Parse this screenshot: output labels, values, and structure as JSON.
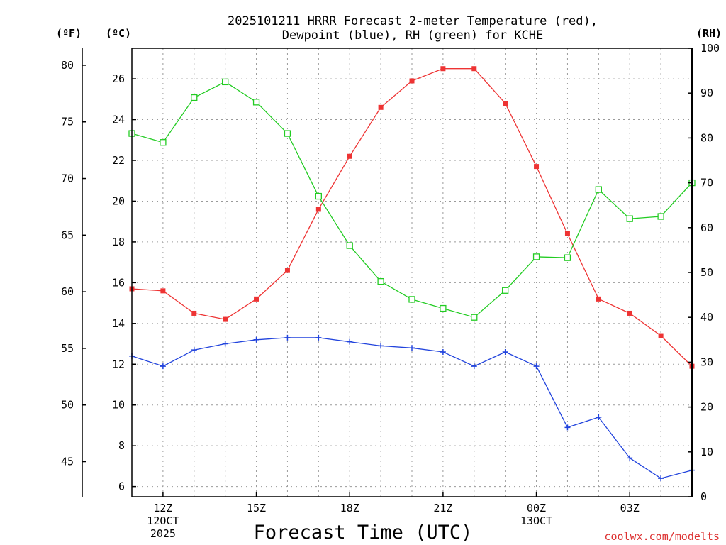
{
  "chart_data": {
    "type": "line",
    "title": "2025101211 HRRR Forecast 2-meter Temperature (red),",
    "subtitle": "Dewpoint (blue), RH (green) for KCHE",
    "xlabel": "Forecast Time (UTC)",
    "left_unit_f": "(ºF)",
    "left_unit_c": "(ºC)",
    "right_unit": "(RH)",
    "credit": "coolwx.com/modelts",
    "ylim_c": [
      5.5,
      27.5
    ],
    "ylim_f": [
      41.9,
      81.5
    ],
    "ylim_rh": [
      0,
      100
    ],
    "yticks_c": [
      6,
      8,
      10,
      12,
      14,
      16,
      18,
      20,
      22,
      24,
      26
    ],
    "yticks_f": [
      45,
      50,
      55,
      60,
      65,
      70,
      75,
      80
    ],
    "yticks_rh": [
      0,
      10,
      20,
      30,
      40,
      50,
      60,
      70,
      80,
      90,
      100
    ],
    "x_hours": [
      11,
      12,
      13,
      14,
      15,
      16,
      17,
      18,
      19,
      20,
      21,
      22,
      23,
      24,
      25,
      26,
      27,
      28,
      29
    ],
    "xlim_hours": [
      11,
      29
    ],
    "x_ticks": [
      {
        "hour": 12,
        "line1": "12Z",
        "line2": "12OCT",
        "line3": "2025"
      },
      {
        "hour": 15,
        "line1": "15Z"
      },
      {
        "hour": 18,
        "line1": "18Z"
      },
      {
        "hour": 21,
        "line1": "21Z"
      },
      {
        "hour": 24,
        "line1": "00Z",
        "line2": "13OCT"
      },
      {
        "hour": 27,
        "line1": "03Z"
      }
    ],
    "series": [
      {
        "name": "Temperature",
        "axis": "c",
        "color": "#ee3333",
        "marker": "filled-square",
        "values": [
          15.7,
          15.6,
          14.5,
          14.2,
          15.2,
          16.6,
          19.6,
          22.2,
          24.6,
          25.9,
          26.5,
          26.5,
          24.8,
          21.7,
          18.4,
          15.2,
          14.5,
          13.4,
          11.9
        ]
      },
      {
        "name": "Dewpoint",
        "axis": "c",
        "color": "#2244dd",
        "marker": "plus",
        "values": [
          12.4,
          11.9,
          12.7,
          13.0,
          13.2,
          13.3,
          13.3,
          13.1,
          12.9,
          12.8,
          12.6,
          11.9,
          12.6,
          11.9,
          8.9,
          9.4,
          7.4,
          6.4,
          6.8
        ]
      },
      {
        "name": "RH",
        "axis": "rh",
        "color": "#22cc22",
        "marker": "open-square",
        "values": [
          81,
          79,
          89,
          92.5,
          88,
          81,
          67,
          56,
          48,
          44,
          42,
          40,
          46,
          53.5,
          53.3,
          68.5,
          62,
          62.5,
          70
        ]
      }
    ]
  }
}
